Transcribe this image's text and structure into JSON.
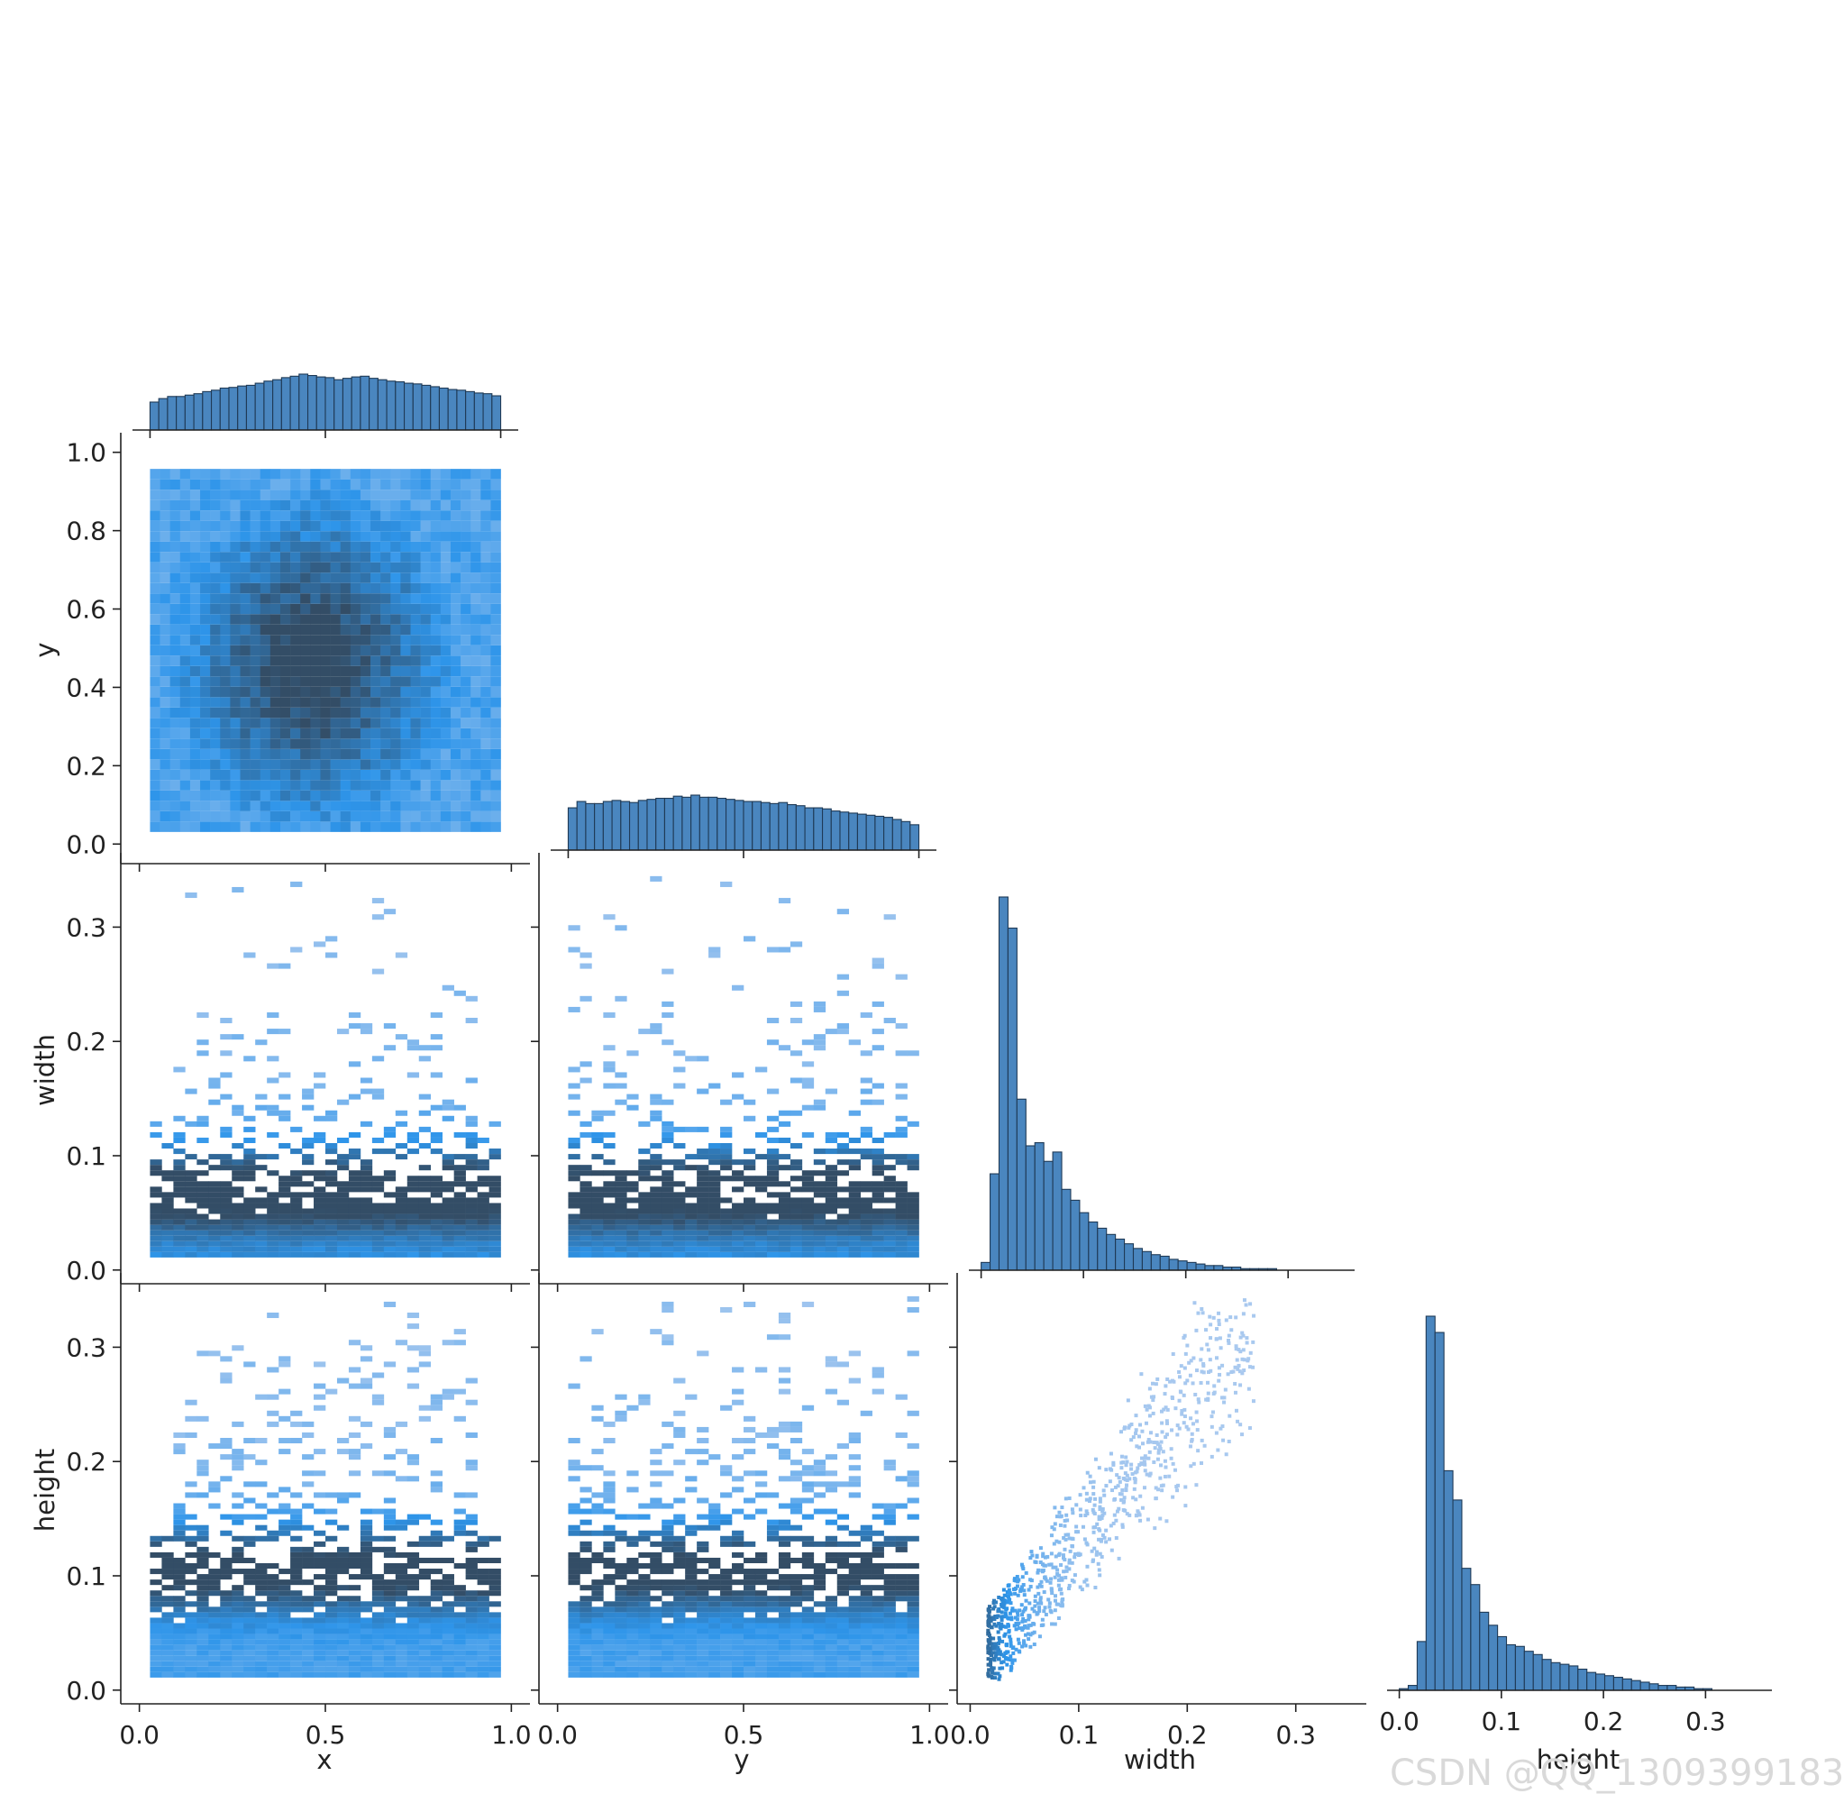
{
  "watermark": "CSDN @QQ_1309399183",
  "colors": {
    "bar": "#4a86bf",
    "bar_edge": "#1f3a56",
    "light": "#a9c9ef",
    "mid": "#2e95ea",
    "dark": "#334d66",
    "axis": "#222222"
  },
  "variables": [
    "x",
    "y",
    "width",
    "height"
  ],
  "chart_data": {
    "type": "pairgrid",
    "layout": "corner",
    "diagonal": "histogram",
    "off_diagonal": "2d-histogram",
    "variables": [
      "x",
      "y",
      "width",
      "height"
    ],
    "axes": {
      "x": {
        "label": "x",
        "lim": [
          -0.05,
          1.05
        ],
        "ticks": [
          0.0,
          0.5,
          1.0
        ],
        "tick_labels": [
          "0.0",
          "0.5",
          "1.0"
        ]
      },
      "y": {
        "label": "y",
        "lim": [
          -0.05,
          1.05
        ],
        "ticks": [
          0.0,
          0.2,
          0.4,
          0.6,
          0.8,
          1.0
        ],
        "tick_labels": [
          "0.0",
          "0.2",
          "0.4",
          "0.6",
          "0.8",
          "1.0"
        ],
        "x_ticks": [
          0.0,
          0.5,
          1.0
        ],
        "x_tick_labels": [
          "0.0",
          "0.5",
          "1.0"
        ]
      },
      "width": {
        "label": "width",
        "lim": [
          -0.012,
          0.365
        ],
        "ticks": [
          0.0,
          0.1,
          0.2,
          0.3
        ],
        "tick_labels": [
          "0.0",
          "0.1",
          "0.2",
          "0.3"
        ]
      },
      "height": {
        "label": "height",
        "lim": [
          -0.012,
          0.365
        ],
        "ticks": [
          0.0,
          0.1,
          0.2,
          0.3
        ],
        "tick_labels": [
          "0.0",
          "0.1",
          "0.2",
          "0.3"
        ]
      }
    },
    "histograms": {
      "x": {
        "bin_range": [
          0.0,
          1.0
        ],
        "counts": [
          40,
          45,
          48,
          48,
          50,
          52,
          55,
          57,
          60,
          61,
          63,
          64,
          67,
          70,
          72,
          75,
          77,
          80,
          78,
          76,
          75,
          72,
          74,
          76,
          77,
          74,
          72,
          70,
          69,
          67,
          66,
          64,
          62,
          60,
          58,
          57,
          55,
          53,
          52,
          49
        ]
      },
      "y": {
        "bin_range": [
          0.0,
          1.0
        ],
        "counts": [
          40,
          46,
          44,
          44,
          46,
          47,
          46,
          45,
          47,
          48,
          49,
          49,
          51,
          50,
          52,
          50,
          50,
          49,
          48,
          47,
          46,
          46,
          45,
          44,
          45,
          43,
          42,
          40,
          40,
          39,
          37,
          36,
          35,
          34,
          33,
          32,
          31,
          29,
          27,
          24
        ]
      },
      "width": {
        "bin_range": [
          0.0,
          0.35
        ],
        "counts": [
          5,
          62,
          240,
          220,
          110,
          80,
          82,
          70,
          76,
          52,
          45,
          37,
          31,
          27,
          23,
          20,
          17,
          14,
          12,
          10,
          9,
          7,
          6,
          5,
          4,
          3,
          3,
          2,
          2,
          1,
          1,
          1,
          1,
          0,
          0,
          0,
          0,
          0,
          0,
          0
        ]
      },
      "height": {
        "bin_range": [
          0.0,
          0.35
        ],
        "counts": [
          1,
          3,
          30,
          230,
          220,
          135,
          117,
          75,
          65,
          48,
          40,
          33,
          28,
          27,
          24,
          22,
          19,
          17,
          16,
          15,
          13,
          11,
          10,
          9,
          8,
          7,
          6,
          5,
          4,
          3,
          3,
          2,
          2,
          1,
          1,
          0,
          0,
          0,
          0,
          0
        ]
      }
    },
    "pairs": [
      {
        "x": "x",
        "y": "y",
        "note": "dense uniform square, darker centre"
      },
      {
        "x": "x",
        "y": "width",
        "note": "dense band near width 0.02"
      },
      {
        "x": "y",
        "y": "width",
        "note": "dense band near width 0.02"
      },
      {
        "x": "width",
        "y": "width",
        "note": "diagonal histogram"
      },
      {
        "x": "x",
        "y": "height",
        "note": "dense band near height 0.04"
      },
      {
        "x": "y",
        "y": "height",
        "note": "dense band near height 0.04"
      },
      {
        "x": "width",
        "y": "height",
        "note": "positively correlated cloud"
      }
    ]
  }
}
